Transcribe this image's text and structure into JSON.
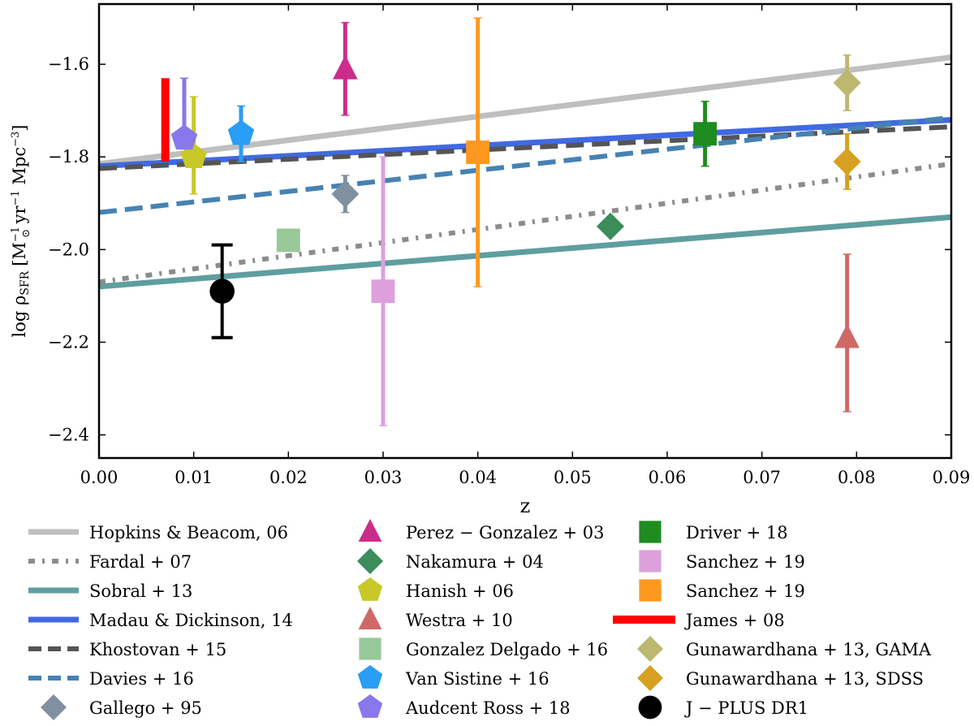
{
  "chart_data": {
    "type": "scatter",
    "xlabel": "z",
    "ylabel": "log ρSFR [M⊙−1 yr−1 Mpc−3]",
    "ylabel_parts": {
      "main": "log ρ",
      "sub": "SFR",
      "bracket_open": "[M",
      "sun": "⊙",
      "sup1": "−1",
      "yr": " yr",
      "sup2": "−1",
      "mpc": " Mpc",
      "sup3": "−3",
      "bracket_close": "]"
    },
    "xlim": [
      0.0,
      0.09
    ],
    "ylim": [
      -2.45,
      -1.47
    ],
    "xticks": [
      0.0,
      0.01,
      0.02,
      0.03,
      0.04,
      0.05,
      0.06,
      0.07,
      0.08,
      0.09
    ],
    "xtick_labels": [
      "0.00",
      "0.01",
      "0.02",
      "0.03",
      "0.04",
      "0.05",
      "0.06",
      "0.07",
      "0.08",
      "0.09"
    ],
    "yticks": [
      -2.4,
      -2.2,
      -2.0,
      -1.8,
      -1.6
    ],
    "ytick_labels": [
      "−2.4",
      "−2.2",
      "−2.0",
      "−1.8",
      "−1.6"
    ],
    "lines": [
      {
        "name": "Hopkins & Beacom, 06",
        "label": "Hopkins & Beacom,  06",
        "color": "#bfbfbf",
        "style": "solid",
        "x": [
          0.0,
          0.09
        ],
        "y": [
          -1.815,
          -1.585
        ]
      },
      {
        "name": "Fardal + 07",
        "label": "Fardal + 07",
        "color": "#8c8c8c",
        "style": "dashdot",
        "x": [
          0.0,
          0.09
        ],
        "y": [
          -2.07,
          -1.815
        ]
      },
      {
        "name": "Sobral + 13",
        "label": "Sobral + 13",
        "color": "#5f9ea0",
        "style": "solid",
        "x": [
          0.0,
          0.09
        ],
        "y": [
          -2.08,
          -1.93
        ]
      },
      {
        "name": "Madau & Dickinson, 14",
        "label": "Madau & Dickinson,  14",
        "color": "#4169e1",
        "style": "solid",
        "x": [
          0.0,
          0.09
        ],
        "y": [
          -1.82,
          -1.72
        ]
      },
      {
        "name": "Khostovan + 15",
        "label": "Khostovan + 15",
        "color": "#555555",
        "style": "dashed",
        "x": [
          0.0,
          0.09
        ],
        "y": [
          -1.825,
          -1.735
        ]
      },
      {
        "name": "Davies + 16",
        "label": "Davies + 16",
        "color": "#4682b4",
        "style": "dashed",
        "x": [
          0.0,
          0.09
        ],
        "y": [
          -1.92,
          -1.715
        ]
      }
    ],
    "points": [
      {
        "name": "Gallego + 95",
        "label": "Gallego + 95",
        "marker": "diamond",
        "color": "#8090a0",
        "x": 0.026,
        "y": -1.88,
        "yerr_low": 0.04,
        "yerr_high": 0.04
      },
      {
        "name": "Perez - Gonzalez + 03",
        "label": "Perez − Gonzalez + 03",
        "marker": "triangle",
        "color": "#cc2c8c",
        "x": 0.026,
        "y": -1.61,
        "yerr_low": 0.1,
        "yerr_high": 0.1
      },
      {
        "name": "Nakamura + 04",
        "label": "Nakamura + 04",
        "marker": "diamond",
        "color": "#3c8c5c",
        "x": 0.054,
        "y": -1.95,
        "yerr_low": 0.0,
        "yerr_high": 0.0
      },
      {
        "name": "Hanish + 06",
        "label": "Hanish + 06",
        "marker": "pentagon",
        "color": "#c8c828",
        "x": 0.01,
        "y": -1.8,
        "yerr_low": 0.08,
        "yerr_high": 0.13
      },
      {
        "name": "Westra + 10",
        "label": "Westra + 10",
        "marker": "triangle",
        "color": "#d06868",
        "x": 0.079,
        "y": -2.19,
        "yerr_low": 0.16,
        "yerr_high": 0.18
      },
      {
        "name": "Gonzalez Delgado + 16",
        "label": "Gonzalez Delgado + 16",
        "marker": "square",
        "color": "#98c898",
        "x": 0.02,
        "y": -1.98,
        "yerr_low": 0.0,
        "yerr_high": 0.0
      },
      {
        "name": "Van Sistine + 16",
        "label": "Van Sistine + 16",
        "marker": "pentagon",
        "color": "#2a9df4",
        "x": 0.015,
        "y": -1.75,
        "yerr_low": 0.06,
        "yerr_high": 0.06
      },
      {
        "name": "Audcent Ross + 18",
        "label": "Audcent Ross + 18",
        "marker": "pentagon",
        "color": "#8878ec",
        "x": 0.009,
        "y": -1.76,
        "yerr_low": 0.0,
        "yerr_high": 0.13
      },
      {
        "name": "Driver + 18",
        "label": "Driver + 18",
        "marker": "square",
        "color": "#1e8c1e",
        "x": 0.064,
        "y": -1.75,
        "yerr_low": 0.07,
        "yerr_high": 0.07
      },
      {
        "name": "Sanchez + 19 (pink)",
        "label": "Sanchez + 19",
        "marker": "square",
        "color": "#dda0dd",
        "x": 0.03,
        "y": -2.09,
        "yerr_low": 0.29,
        "yerr_high": 0.29
      },
      {
        "name": "Sanchez + 19 (orange)",
        "label": "Sanchez + 19",
        "marker": "square",
        "color": "#ff9820",
        "x": 0.04,
        "y": -1.79,
        "yerr_low": 0.29,
        "yerr_high": 0.29
      },
      {
        "name": "James + 08",
        "label": "James + 08",
        "marker": "bar",
        "color": "#ff0000",
        "x": 0.007,
        "y": -1.72,
        "yerr_low": 0.09,
        "yerr_high": 0.09
      },
      {
        "name": "Gunawardhana + 13, GAMA",
        "label": "Gunawardhana + 13,  GAMA",
        "marker": "diamond",
        "color": "#bcb870",
        "x": 0.079,
        "y": -1.64,
        "yerr_low": 0.06,
        "yerr_high": 0.06
      },
      {
        "name": "Gunawardhana + 13, SDSS",
        "label": "Gunawardhana + 13,  SDSS",
        "marker": "diamond",
        "color": "#d8a020",
        "x": 0.079,
        "y": -1.81,
        "yerr_low": 0.06,
        "yerr_high": 0.06
      },
      {
        "name": "J - PLUS DR1",
        "label": "J − PLUS DR1",
        "marker": "circle",
        "color": "#000000",
        "x": 0.013,
        "y": -2.09,
        "yerr_low": 0.1,
        "yerr_high": 0.1
      }
    ],
    "legend": [
      {
        "label": "Hopkins & Beacom,  06",
        "kind": "line",
        "ref": 0
      },
      {
        "label": "Fardal + 07",
        "kind": "line",
        "ref": 1
      },
      {
        "label": "Sobral + 13",
        "kind": "line",
        "ref": 2
      },
      {
        "label": "Madau & Dickinson,  14",
        "kind": "line",
        "ref": 3
      },
      {
        "label": "Khostovan + 15",
        "kind": "line",
        "ref": 4
      },
      {
        "label": "Davies + 16",
        "kind": "line",
        "ref": 5
      },
      {
        "label": "Gallego + 95",
        "kind": "point",
        "ref": 0
      },
      {
        "label": "Perez − Gonzalez + 03",
        "kind": "point",
        "ref": 1
      },
      {
        "label": "Nakamura + 04",
        "kind": "point",
        "ref": 2
      },
      {
        "label": "Hanish + 06",
        "kind": "point",
        "ref": 3
      },
      {
        "label": "Westra + 10",
        "kind": "point",
        "ref": 4
      },
      {
        "label": "Gonzalez Delgado + 16",
        "kind": "point",
        "ref": 5
      },
      {
        "label": "Van Sistine + 16",
        "kind": "point",
        "ref": 6
      },
      {
        "label": "Audcent Ross + 18",
        "kind": "point",
        "ref": 7
      },
      {
        "label": "Driver + 18",
        "kind": "point",
        "ref": 8
      },
      {
        "label": "Sanchez + 19",
        "kind": "point",
        "ref": 9
      },
      {
        "label": "Sanchez + 19",
        "kind": "point",
        "ref": 10
      },
      {
        "label": "James + 08",
        "kind": "point",
        "ref": 11
      },
      {
        "label": "Gunawardhana + 13,  GAMA",
        "kind": "point",
        "ref": 12
      },
      {
        "label": "Gunawardhana + 13,  SDSS",
        "kind": "point",
        "ref": 13
      },
      {
        "label": "J − PLUS DR1",
        "kind": "point",
        "ref": 14
      }
    ],
    "legend_placement": "below plot, three columns",
    "grid": false
  }
}
